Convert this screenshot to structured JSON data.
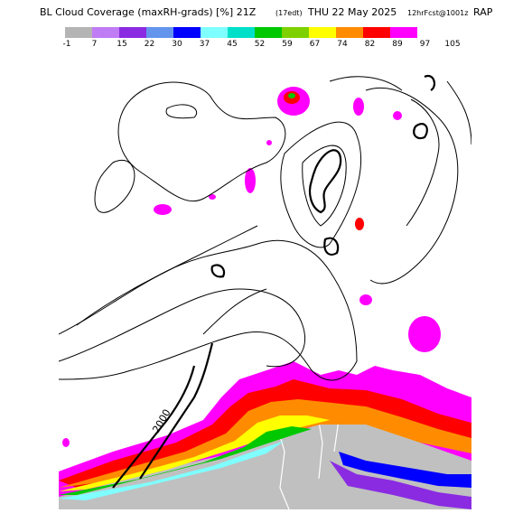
{
  "header": {
    "title_main": "BL Cloud Coverage (maxRH-grads) [%] 21Z",
    "time_local": "(17edt)",
    "date": "THU 22 May 2025",
    "forecast": "12hrFcst@1001z",
    "model": "RAP"
  },
  "legend": {
    "ticks": [
      "-1",
      "7",
      "15",
      "22",
      "30",
      "37",
      "45",
      "52",
      "59",
      "67",
      "74",
      "82",
      "89",
      "97",
      "105"
    ],
    "colors": [
      "#b4b4b4",
      "#c07cf4",
      "#8a2be2",
      "#6495ed",
      "#0000ff",
      "#7fffff",
      "#00e0c8",
      "#00c800",
      "#7fd000",
      "#ffff00",
      "#ff8c00",
      "#ff0000",
      "#ff00ff",
      "#ffffff"
    ]
  },
  "map": {
    "contour_label": "2000",
    "land_fill": "#c0c0c0",
    "water_fill": "#ffffff"
  }
}
